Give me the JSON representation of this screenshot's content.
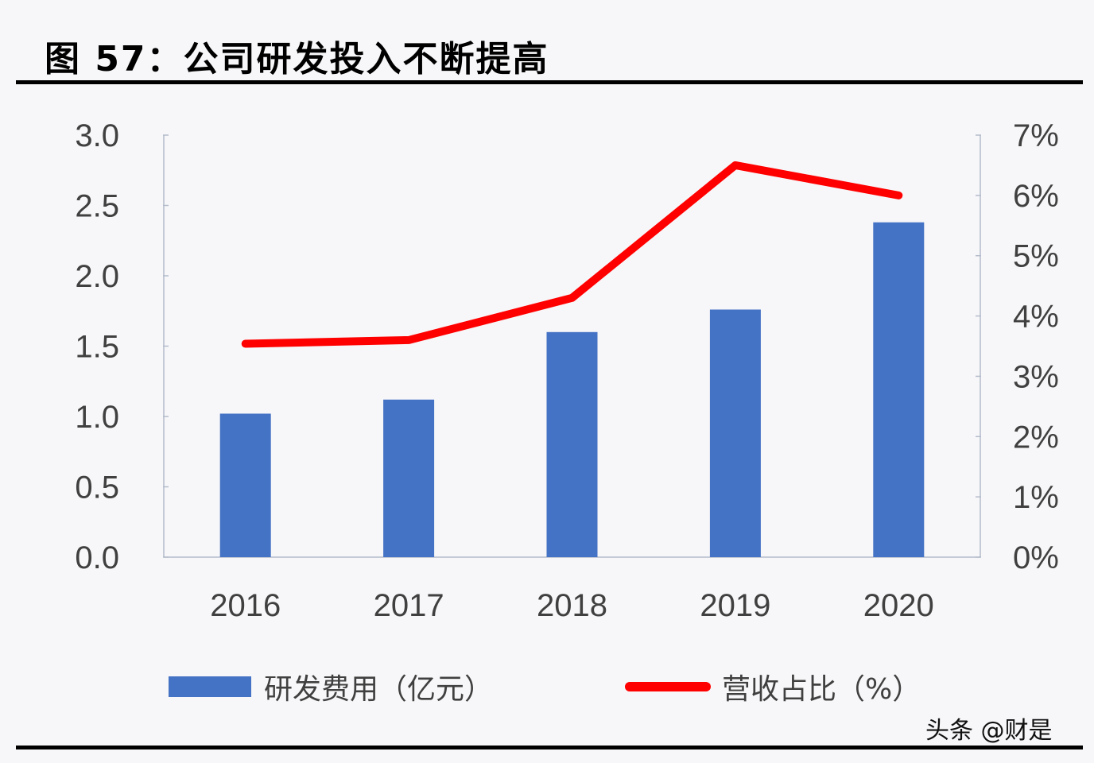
{
  "header": {
    "title": "图 57：公司研发投入不断提高"
  },
  "watermark": "头条 @财是",
  "legend": {
    "bar_label": "研发费用（亿元）",
    "line_label": "营收占比（%）"
  },
  "colors": {
    "bar": "#4472c4",
    "line": "#ff0000",
    "axis": "#b4bccb",
    "text": "#404040"
  },
  "chart_data": {
    "type": "bar",
    "title": "图 57：公司研发投入不断提高",
    "categories": [
      "2016",
      "2017",
      "2018",
      "2019",
      "2020"
    ],
    "series": [
      {
        "name": "研发费用（亿元）",
        "type": "bar",
        "axis": "left",
        "values": [
          1.02,
          1.12,
          1.6,
          1.76,
          2.38
        ]
      },
      {
        "name": "营收占比（%）",
        "type": "line",
        "axis": "right",
        "values": [
          3.54,
          3.6,
          4.3,
          6.5,
          6.0
        ]
      }
    ],
    "left_axis": {
      "ylim": [
        0,
        3.0
      ],
      "ticks": [
        "0.0",
        "0.5",
        "1.0",
        "1.5",
        "2.0",
        "2.5",
        "3.0"
      ]
    },
    "right_axis": {
      "ylim": [
        0,
        7
      ],
      "ticks": [
        "0%",
        "1%",
        "2%",
        "3%",
        "4%",
        "5%",
        "6%",
        "7%"
      ]
    },
    "xlabel": "",
    "ylabel": "",
    "grid": false,
    "legend_position": "bottom"
  }
}
